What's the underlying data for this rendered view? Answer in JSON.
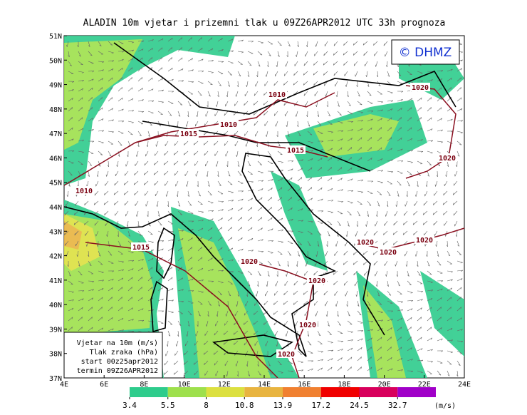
{
  "title": "ALADIN 10m vjetar i prizemni tlak u 09Z26APR2012 UTC 33h prognoza",
  "logo": "© DHMZ",
  "lat_labels": [
    "51N",
    "50N",
    "49N",
    "48N",
    "47N",
    "46N",
    "45N",
    "44N",
    "43N",
    "42N",
    "41N",
    "40N",
    "39N",
    "38N",
    "37N"
  ],
  "lon_labels": [
    "4E",
    "6E",
    "8E",
    "10E",
    "12E",
    "14E",
    "16E",
    "18E",
    "20E",
    "22E",
    "24E"
  ],
  "isobar_labels": [
    "1010",
    "1010",
    "1010",
    "1015",
    "1015",
    "1015",
    "1020",
    "1020",
    "1020",
    "1020",
    "1020",
    "1020",
    "1020",
    "1020",
    "1020"
  ],
  "legend_box": [
    "Vjetar na 10m (m/s)",
    "Tlak zraka (hPa)",
    "start 00z25apr2012",
    "termin 09Z26APR2012"
  ],
  "colorbar": {
    "bounds": [
      3.4,
      5.5,
      8,
      10.8,
      13.9,
      17.2,
      24.5,
      32.7
    ],
    "colors": [
      "#2ecc8c",
      "#9ee04c",
      "#dce040",
      "#e8b440",
      "#f08030",
      "#f00000",
      "#d8005c",
      "#a000c8"
    ],
    "unit": "(m/s)"
  }
}
